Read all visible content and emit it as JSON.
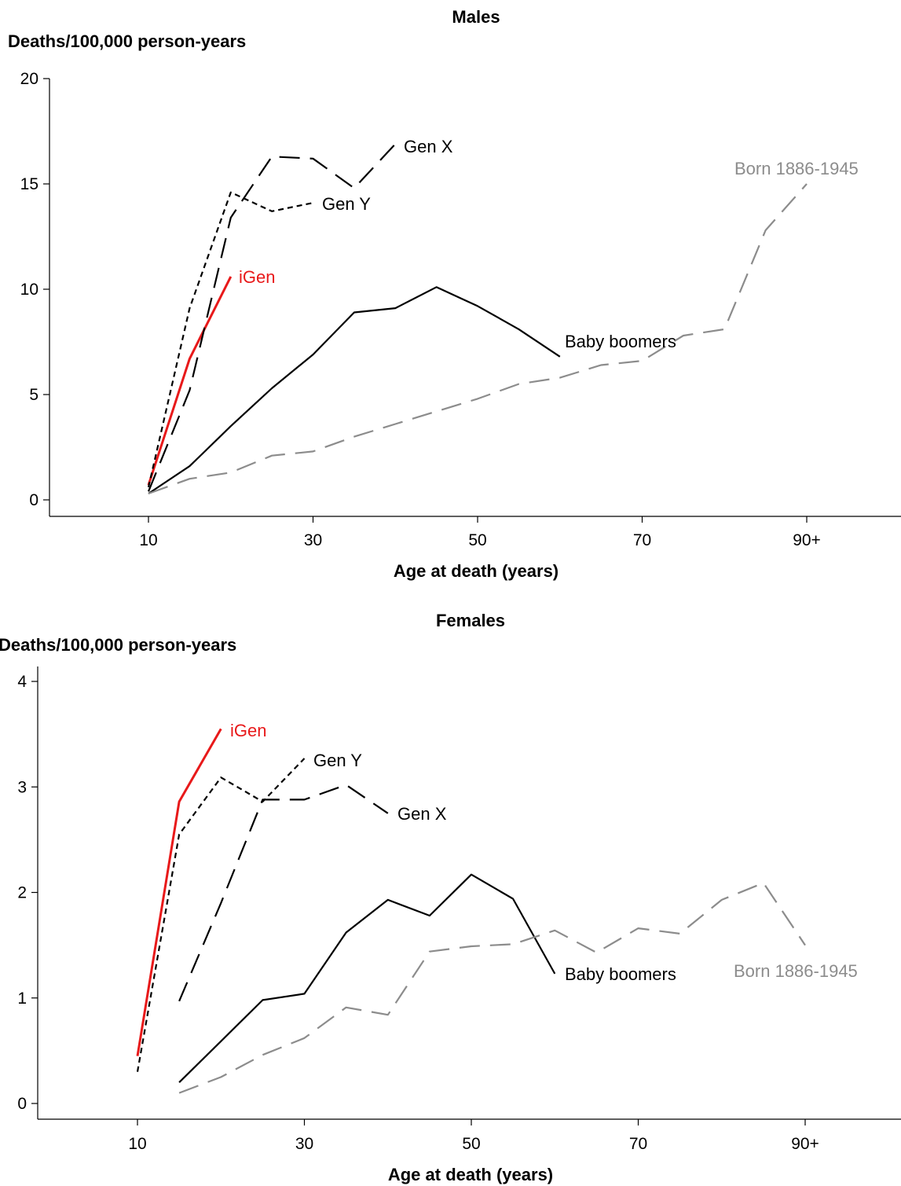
{
  "chart_data": [
    {
      "type": "line",
      "title": "Males",
      "ylabel": "Deaths/100,000 person-years",
      "xlabel": "Age at death (years)",
      "xlim": [
        5,
        97.5
      ],
      "ylim": [
        0,
        20
      ],
      "x_ticks": [
        10,
        30,
        50,
        70,
        90
      ],
      "x_tick_labels": [
        "10",
        "30",
        "50",
        "70",
        "90+"
      ],
      "y_ticks": [
        0,
        5,
        10,
        15,
        20
      ],
      "y_tick_labels": [
        "0",
        "5",
        "10",
        "15",
        "20"
      ],
      "grid": false,
      "legend": "none",
      "series": [
        {
          "name": "iGen",
          "color": "#e8191a",
          "style": "solid",
          "x": [
            10,
            15,
            20
          ],
          "y": [
            0.7,
            6.7,
            10.6
          ]
        },
        {
          "name": "Gen Y",
          "color": "#000000",
          "style": "dotted",
          "x": [
            10,
            15,
            20,
            25,
            30
          ],
          "y": [
            0.6,
            9.1,
            14.6,
            13.7,
            14.1
          ]
        },
        {
          "name": "Gen X",
          "color": "#000000",
          "style": "dashed",
          "x": [
            10,
            15,
            20,
            25,
            30,
            35,
            40
          ],
          "y": [
            0.4,
            5.2,
            13.4,
            16.3,
            16.2,
            14.8,
            16.9
          ]
        },
        {
          "name": "Baby boomers",
          "color": "#000000",
          "style": "solid",
          "x": [
            10,
            15,
            20,
            25,
            30,
            35,
            40,
            45,
            50,
            55,
            60
          ],
          "y": [
            0.3,
            1.6,
            3.5,
            5.3,
            6.9,
            8.9,
            9.1,
            10.1,
            9.2,
            8.1,
            6.8
          ]
        },
        {
          "name": "Born 1886-1945",
          "color": "#8c8c8c",
          "style": "dashed",
          "x": [
            10,
            15,
            20,
            25,
            30,
            35,
            40,
            45,
            50,
            55,
            60,
            65,
            70,
            75,
            80,
            85,
            90
          ],
          "y": [
            0.3,
            1.0,
            1.3,
            2.1,
            2.3,
            3.0,
            3.6,
            4.2,
            4.8,
            5.5,
            5.8,
            6.4,
            6.6,
            7.8,
            8.1,
            12.8,
            15.0
          ]
        }
      ]
    },
    {
      "type": "line",
      "title": "Females",
      "ylabel": "Deaths/100,000 person-years",
      "xlabel": "Age at death (years)",
      "xlim": [
        -2,
        100
      ],
      "ylim": [
        0,
        4
      ],
      "x_ticks": [
        10,
        30,
        50,
        70,
        90
      ],
      "x_tick_labels": [
        "10",
        "30",
        "50",
        "70",
        "90+"
      ],
      "y_ticks": [
        0,
        1,
        2,
        3,
        4
      ],
      "y_tick_labels": [
        "0",
        "1",
        "2",
        "3",
        "4"
      ],
      "grid": false,
      "legend": "none",
      "series": [
        {
          "name": "iGen",
          "color": "#e8191a",
          "style": "solid",
          "x": [
            10,
            15,
            20
          ],
          "y": [
            0.45,
            2.86,
            3.55
          ]
        },
        {
          "name": "Gen Y",
          "color": "#000000",
          "style": "dotted",
          "x": [
            10,
            15,
            20,
            25,
            30
          ],
          "y": [
            0.3,
            2.55,
            3.09,
            2.86,
            3.27
          ]
        },
        {
          "name": "Gen X",
          "color": "#000000",
          "style": "dashed",
          "x": [
            15,
            20,
            25,
            30,
            35,
            40
          ],
          "y": [
            0.97,
            1.9,
            2.88,
            2.88,
            3.02,
            2.75
          ]
        },
        {
          "name": "Baby boomers",
          "color": "#000000",
          "style": "solid",
          "x": [
            15,
            20,
            25,
            30,
            35,
            40,
            45,
            50,
            55,
            60
          ],
          "y": [
            0.2,
            0.59,
            0.98,
            1.04,
            1.62,
            1.93,
            1.78,
            2.17,
            1.94,
            1.23
          ]
        },
        {
          "name": "Born 1886-1945",
          "color": "#8c8c8c",
          "style": "dashed",
          "x": [
            15,
            20,
            25,
            30,
            35,
            40,
            45,
            50,
            55,
            60,
            65,
            70,
            75,
            80,
            85,
            90
          ],
          "y": [
            0.1,
            0.25,
            0.46,
            0.62,
            0.91,
            0.84,
            1.44,
            1.49,
            1.51,
            1.64,
            1.43,
            1.66,
            1.61,
            1.93,
            2.09,
            1.5
          ]
        }
      ]
    }
  ]
}
